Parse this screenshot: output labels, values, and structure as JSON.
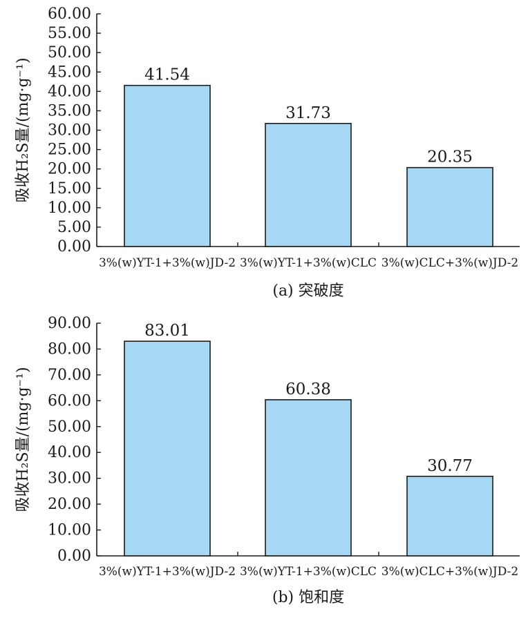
{
  "chart_data": [
    {
      "type": "bar",
      "caption": "(a) 突破度",
      "ylabel": "吸收H₂S量/(mg·g⁻¹)",
      "categories": [
        "3%(w)YT-1+3%(w)JD-2",
        "3%(w)YT-1+3%(w)CLC",
        "3%(w)CLC+3%(w)JD-2"
      ],
      "values": [
        41.54,
        31.73,
        20.35
      ],
      "value_labels": [
        "41.54",
        "31.73",
        "20.35"
      ],
      "ylim": [
        0,
        60
      ],
      "yticks": [
        "0.00",
        "5.00",
        "10.00",
        "15.00",
        "20.00",
        "25.00",
        "30.00",
        "35.00",
        "40.00",
        "45.00",
        "50.00",
        "55.00",
        "60.00"
      ],
      "bar_color": "#a6d8f3"
    },
    {
      "type": "bar",
      "caption": "(b) 饱和度",
      "ylabel": "吸收H₂S量/(mg·g⁻¹)",
      "categories": [
        "3%(w)YT-1+3%(w)JD-2",
        "3%(w)YT-1+3%(w)CLC",
        "3%(w)CLC+3%(w)JD-2"
      ],
      "values": [
        83.01,
        60.38,
        30.77
      ],
      "value_labels": [
        "83.01",
        "60.38",
        "30.77"
      ],
      "ylim": [
        0,
        90
      ],
      "yticks": [
        "0.00",
        "10.00",
        "20.00",
        "30.00",
        "40.00",
        "50.00",
        "60.00",
        "70.00",
        "80.00",
        "90.00"
      ],
      "bar_color": "#a6d8f3"
    }
  ]
}
